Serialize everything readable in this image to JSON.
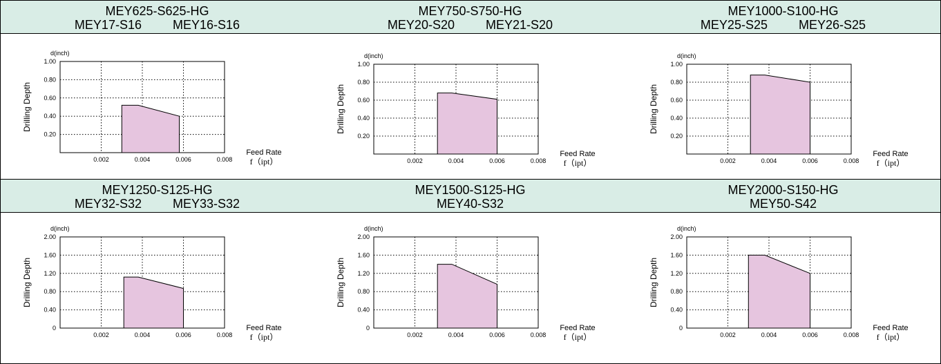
{
  "headers": [
    {
      "line1": "MEY625-S625-HG",
      "line2a": "MEY17-S16",
      "line2b": "MEY16-S16"
    },
    {
      "line1": "MEY750-S750-HG",
      "line2a": "MEY20-S20",
      "line2b": "MEY21-S20"
    },
    {
      "line1": "MEY1000-S100-HG",
      "line2a": "MEY25-S25",
      "line2b": "MEY26-S25"
    },
    {
      "line1": "MEY1250-S125-HG",
      "line2a": "MEY32-S32",
      "line2b": "MEY33-S32"
    },
    {
      "line1": "MEY1500-S125-HG",
      "line2a": "MEY40-S32",
      "line2b": ""
    },
    {
      "line1": "MEY2000-S150-HG",
      "line2a": "MEY50-S42",
      "line2b": ""
    }
  ],
  "chart_data": [
    {
      "type": "area",
      "ylabel": "Drilling Depth",
      "yunit": "d(inch)",
      "xlabel": "Feed Rate",
      "xunit": "f（ipt）",
      "xlim": [
        0,
        0.008
      ],
      "ylim": [
        0,
        1.0
      ],
      "xticks": [
        "0.002",
        "0.004",
        "0.006",
        "0.008"
      ],
      "yticks": [
        "0.20",
        "0.40",
        "0.60",
        "0.80",
        "1.00"
      ],
      "grid": true,
      "fill": "#e6c5df",
      "x": [
        0.003,
        0.0038,
        0.0058,
        0.0058,
        0.003
      ],
      "y": [
        0.52,
        0.52,
        0.4,
        0,
        0
      ]
    },
    {
      "type": "area",
      "ylabel": "Drilling Depth",
      "yunit": "d(inch)",
      "xlabel": "Feed Rate",
      "xunit": "f（ipt）",
      "xlim": [
        0,
        0.008
      ],
      "ylim": [
        0,
        1.0
      ],
      "xticks": [
        "0.002",
        "0.004",
        "0.006",
        "0.008"
      ],
      "yticks": [
        "0.20",
        "0.40",
        "0.60",
        "0.80",
        "1.00"
      ],
      "grid": true,
      "fill": "#e6c5df",
      "x": [
        0.0031,
        0.0038,
        0.006,
        0.006,
        0.0031
      ],
      "y": [
        0.68,
        0.68,
        0.61,
        0,
        0
      ]
    },
    {
      "type": "area",
      "ylabel": "Drilling Depth",
      "yunit": "d(inch)",
      "xlabel": "Feed Rate",
      "xunit": "f（ipt）",
      "xlim": [
        0,
        0.008
      ],
      "ylim": [
        0,
        1.0
      ],
      "xticks": [
        "0.002",
        "0.004",
        "0.006",
        "0.008"
      ],
      "yticks": [
        "0.20",
        "0.40",
        "0.60",
        "0.80",
        "1.00"
      ],
      "grid": true,
      "fill": "#e6c5df",
      "x": [
        0.0031,
        0.0038,
        0.006,
        0.006,
        0.0031
      ],
      "y": [
        0.88,
        0.88,
        0.8,
        0,
        0
      ]
    },
    {
      "type": "area",
      "ylabel": "Drilling Depth",
      "yunit": "d(inch)",
      "xlabel": "Feed Rate",
      "xunit": "f（ipt）",
      "xlim": [
        0,
        0.008
      ],
      "ylim": [
        0,
        2.0
      ],
      "xticks": [
        "0.002",
        "0.004",
        "0.006",
        "0.008"
      ],
      "yticks": [
        "0",
        "0.40",
        "0.80",
        "1.20",
        "1.60",
        "2.00"
      ],
      "grid": true,
      "fill": "#e6c5df",
      "x": [
        0.0031,
        0.0038,
        0.006,
        0.006,
        0.0031
      ],
      "y": [
        1.12,
        1.12,
        0.87,
        0,
        0
      ]
    },
    {
      "type": "area",
      "ylabel": "Drilling Depth",
      "yunit": "d(inch)",
      "xlabel": "Feed Rate",
      "xunit": "f（ipt）",
      "xlim": [
        0,
        0.008
      ],
      "ylim": [
        0,
        2.0
      ],
      "xticks": [
        "0.002",
        "0.004",
        "0.006",
        "0.008"
      ],
      "yticks": [
        "0",
        "0.40",
        "0.80",
        "1.20",
        "1.60",
        "2.00"
      ],
      "grid": true,
      "fill": "#e6c5df",
      "x": [
        0.0031,
        0.0038,
        0.006,
        0.006,
        0.0031
      ],
      "y": [
        1.4,
        1.4,
        0.96,
        0,
        0
      ]
    },
    {
      "type": "area",
      "ylabel": "Drilling Depth",
      "yunit": "d(inch)",
      "xlabel": "Feed Rate",
      "xunit": "f（ipt）",
      "xlim": [
        0,
        0.008
      ],
      "ylim": [
        0,
        2.0
      ],
      "xticks": [
        "0.002",
        "0.004",
        "0.006",
        "0.008"
      ],
      "yticks": [
        "0",
        "0.40",
        "0.80",
        "1.20",
        "1.60",
        "2.00"
      ],
      "grid": true,
      "fill": "#e6c5df",
      "x": [
        0.003,
        0.0038,
        0.006,
        0.006,
        0.003
      ],
      "y": [
        1.6,
        1.6,
        1.2,
        0,
        0
      ]
    }
  ]
}
